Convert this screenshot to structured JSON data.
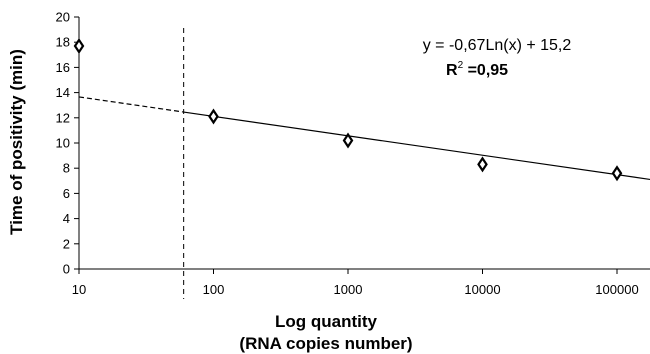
{
  "chart_data": {
    "type": "scatter",
    "xscale": "log",
    "xlim": [
      10,
      100000
    ],
    "ylim": [
      0,
      20
    ],
    "xticks": [
      10,
      100,
      1000,
      10000,
      100000
    ],
    "xtick_labels": [
      "10",
      "100",
      "1000",
      "10000",
      "100000"
    ],
    "yticks": [
      0,
      2,
      4,
      6,
      8,
      10,
      12,
      14,
      16,
      18,
      20
    ],
    "ytick_labels": [
      "0",
      "2",
      "4",
      "6",
      "8",
      "10",
      "12",
      "14",
      "16",
      "18",
      "20"
    ],
    "ylabel": "Time of positivity (min)",
    "xlabel_line1": "Log quantity",
    "xlabel_line2": "(RNA copies number)",
    "points": [
      {
        "x": 10,
        "y": 17.7
      },
      {
        "x": 100,
        "y": 12.1
      },
      {
        "x": 1000,
        "y": 10.2
      },
      {
        "x": 10000,
        "y": 8.3
      },
      {
        "x": 100000,
        "y": 7.6
      }
    ],
    "trendline": {
      "equation": "y = -0,67Ln(x) + 15,2",
      "r2_label": "R",
      "r2_superscript": "2",
      "r2_value": " =0,95",
      "slope": -0.67,
      "intercept": 15.2,
      "solid_from_x": 60,
      "to_x": 180000
    },
    "cutoff_line_x": 60,
    "grid": false,
    "legend": "none",
    "marker": "diamond",
    "colors": {
      "axis": "#000000",
      "marker": "#000000",
      "background": "#ffffff"
    }
  }
}
